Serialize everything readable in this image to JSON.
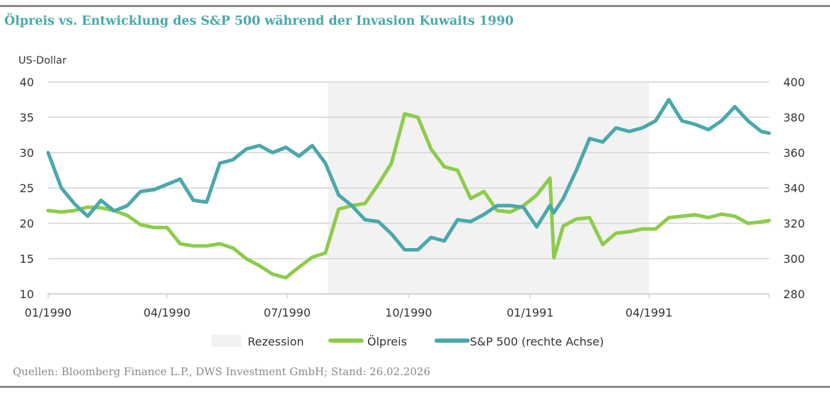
{
  "title": "Ölpreis vs. Entwicklung des S&P 500 während der Invasion Kuwaits 1990",
  "source": "Quellen: Bloomberg Finance L.P., DWS Investment GmbH; Stand: 26.02.2026",
  "chart_data": {
    "type": "line",
    "title": "Ölpreis vs. Entwicklung des S&P 500 während der Invasion Kuwaits 1990",
    "ylabel": "US-Dollar",
    "xlim": [
      "1990-01-01",
      "1991-07-01"
    ],
    "ylim": [
      10,
      40
    ],
    "y2lim": [
      280,
      400
    ],
    "grid": true,
    "legend_position": "bottom",
    "x_ticks": [
      {
        "date": "1990-01-01",
        "label": "01/1990"
      },
      {
        "date": "1990-04-01",
        "label": "04/1990"
      },
      {
        "date": "1990-07-01",
        "label": "07/1990"
      },
      {
        "date": "1990-10-01",
        "label": "10/1990"
      },
      {
        "date": "1991-01-01",
        "label": "01/1991"
      },
      {
        "date": "1991-04-01",
        "label": "04/1991"
      }
    ],
    "y_ticks": [
      "10",
      "15",
      "20",
      "25",
      "30",
      "35",
      "40"
    ],
    "y2_ticks": [
      "280",
      "300",
      "320",
      "340",
      "360",
      "380",
      "400"
    ],
    "recession": {
      "name": "Rezession",
      "start": "1990-08-01",
      "end": "1991-04-01",
      "color": "#f2f2f2"
    },
    "x": [
      "1990-01-01",
      "1990-01-11",
      "1990-01-21",
      "1990-01-31",
      "1990-02-10",
      "1990-02-20",
      "1990-03-02",
      "1990-03-12",
      "1990-03-22",
      "1990-04-01",
      "1990-04-11",
      "1990-04-21",
      "1990-05-01",
      "1990-05-11",
      "1990-05-21",
      "1990-05-31",
      "1990-06-10",
      "1990-06-20",
      "1990-06-30",
      "1990-07-10",
      "1990-07-20",
      "1990-07-30",
      "1990-08-09",
      "1990-08-19",
      "1990-08-29",
      "1990-09-08",
      "1990-09-18",
      "1990-09-28",
      "1990-10-08",
      "1990-10-18",
      "1990-10-28",
      "1990-11-07",
      "1990-11-17",
      "1990-11-27",
      "1990-12-07",
      "1990-12-17",
      "1990-12-27",
      "1991-01-06",
      "1991-01-16",
      "1991-01-19",
      "1991-01-26",
      "1991-02-05",
      "1991-02-15",
      "1991-02-25",
      "1991-03-07",
      "1991-03-17",
      "1991-03-27",
      "1991-04-06",
      "1991-04-16",
      "1991-04-26",
      "1991-05-06",
      "1991-05-16",
      "1991-05-26",
      "1991-06-05",
      "1991-06-15",
      "1991-06-25",
      "1991-07-01"
    ],
    "series": [
      {
        "name": "Ölpreis",
        "axis": "left",
        "color": "#8ccc4a",
        "values": [
          21.8,
          21.6,
          21.8,
          22.3,
          22.2,
          21.8,
          21.1,
          19.8,
          19.4,
          19.4,
          17.1,
          16.8,
          16.8,
          17.1,
          16.5,
          15.0,
          14.0,
          12.8,
          12.3,
          13.8,
          15.2,
          15.8,
          22.0,
          22.5,
          22.8,
          25.5,
          28.5,
          35.5,
          35.0,
          30.5,
          28.0,
          27.5,
          23.5,
          24.5,
          21.8,
          21.6,
          22.5,
          24.0,
          26.4,
          15.1,
          19.6,
          20.6,
          20.8,
          17.0,
          18.6,
          18.8,
          19.2,
          19.2,
          20.8,
          21.0,
          21.2,
          20.8,
          21.3,
          21.0,
          20.0,
          20.2,
          20.4
        ]
      },
      {
        "name": "S&P 500 (rechte Achse)",
        "axis": "right",
        "color": "#4aa8ab",
        "values": [
          360,
          340,
          331,
          324,
          333,
          327,
          330,
          338,
          339,
          342,
          345,
          333,
          332,
          354,
          356,
          362,
          364,
          360,
          363,
          358,
          364,
          354,
          336,
          330,
          322,
          321,
          314,
          305,
          305,
          312,
          310,
          322,
          321,
          325,
          330,
          330,
          329,
          318,
          330,
          326,
          334,
          350,
          368,
          366,
          374,
          372,
          374,
          378,
          390,
          378,
          376,
          373,
          378,
          386,
          378,
          372,
          371
        ]
      }
    ]
  }
}
